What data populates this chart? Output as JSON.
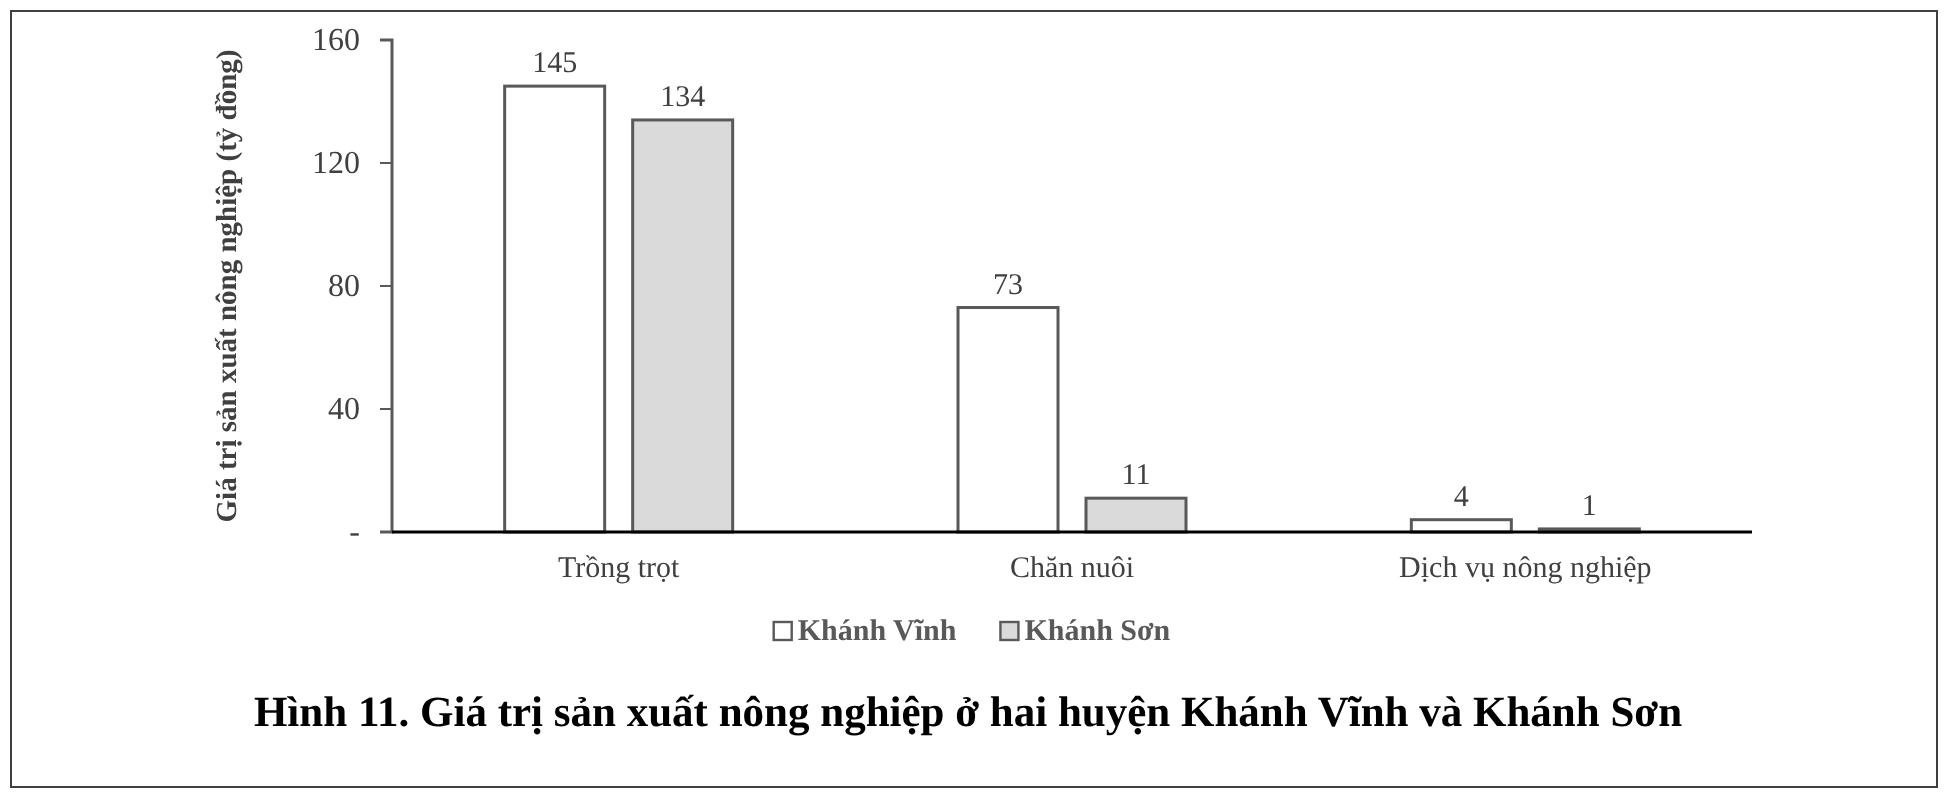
{
  "chart_data": {
    "type": "bar",
    "title": "Hình 11. Giá trị sản xuất nông nghiệp ở hai huyện Khánh Vĩnh và Khánh Sơn",
    "ylabel": "Giá trị sản xuất nông nghiệp (tỷ đồng)",
    "categories": [
      "Trồng trọt",
      "Chăn nuôi",
      "Dịch vụ nông nghiệp"
    ],
    "series": [
      {
        "name": "Khánh Vĩnh",
        "color": "#ffffff",
        "values": [
          145,
          73,
          4
        ]
      },
      {
        "name": "Khánh Sơn",
        "color": "#dadada",
        "values": [
          134,
          11,
          1
        ]
      }
    ],
    "ylim": [
      0,
      160
    ],
    "yticks": [
      {
        "value": 0,
        "label": "-"
      },
      40,
      80,
      120,
      160
    ],
    "data_labels": true,
    "grid": false,
    "legend": "bottom"
  }
}
